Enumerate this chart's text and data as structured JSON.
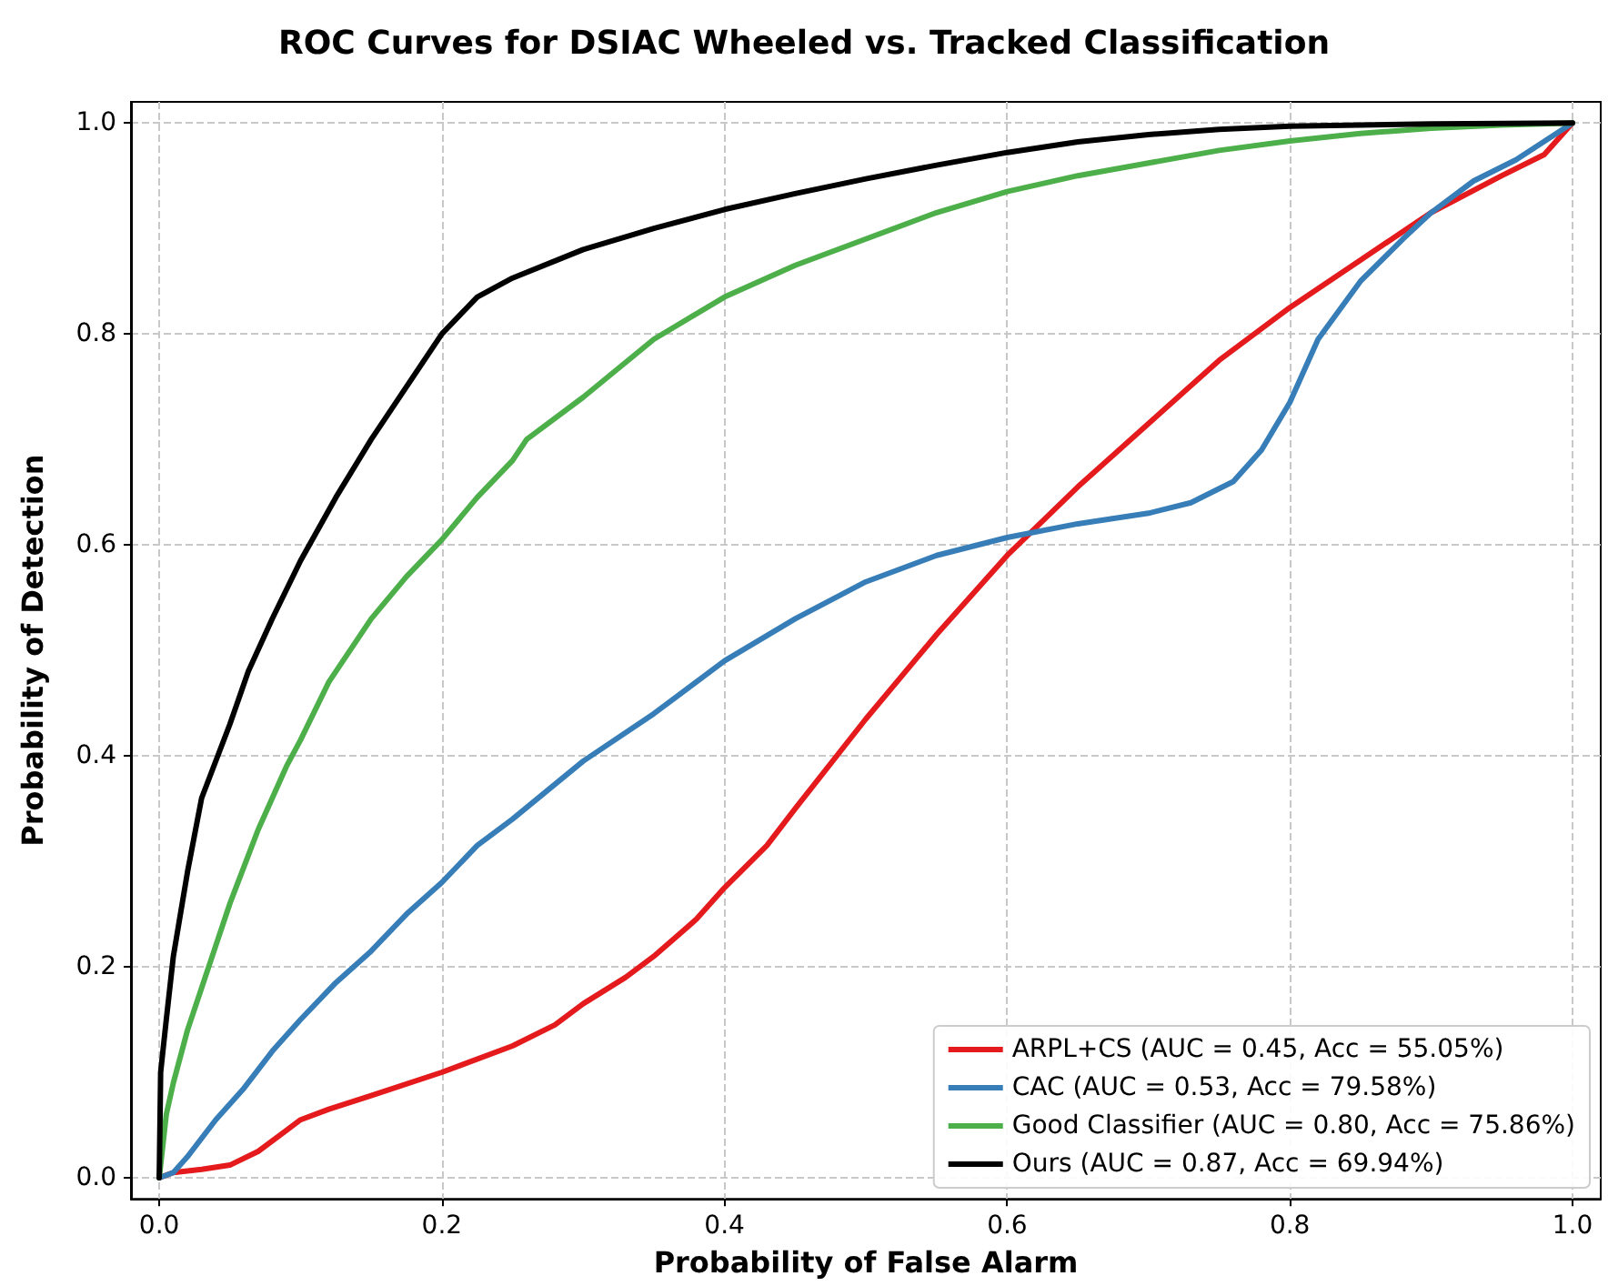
{
  "chart_data": {
    "type": "line",
    "title": "ROC Curves for DSIAC Wheeled vs. Tracked Classification",
    "xlabel": "Probability of False Alarm",
    "ylabel": "Probability of Detection",
    "xlim": [
      -0.02,
      1.02
    ],
    "ylim": [
      -0.02,
      1.02
    ],
    "xticks": [
      {
        "value": 0,
        "label": "0.0"
      },
      0.2,
      0.4,
      0.6,
      0.8,
      {
        "value": 1,
        "label": "1.0"
      }
    ],
    "yticks": [
      {
        "value": 0,
        "label": "0.0"
      },
      0.2,
      0.4,
      0.6,
      0.8,
      {
        "value": 1,
        "label": "1.0"
      }
    ],
    "grid": true,
    "legend": "bottom right",
    "marker": "none",
    "line_style": "solid",
    "series": [
      {
        "name": "ARPL+CS (AUC = 0.45, Acc = 55.05%)",
        "color": "#e41a1c",
        "x": [
          0,
          0.01,
          0.03,
          0.05,
          0.07,
          0.09,
          0.1,
          0.12,
          0.15,
          0.2,
          0.25,
          0.28,
          0.3,
          0.33,
          0.35,
          0.38,
          0.4,
          0.43,
          0.45,
          0.5,
          0.55,
          0.6,
          0.65,
          0.7,
          0.75,
          0.8,
          0.85,
          0.9,
          0.95,
          0.98,
          1
        ],
        "values": [
          0,
          0.005,
          0.008,
          0.012,
          0.025,
          0.045,
          0.055,
          0.065,
          0.078,
          0.1,
          0.125,
          0.145,
          0.165,
          0.19,
          0.21,
          0.245,
          0.275,
          0.315,
          0.35,
          0.435,
          0.515,
          0.59,
          0.655,
          0.715,
          0.775,
          0.825,
          0.87,
          0.915,
          0.95,
          0.97,
          1
        ]
      },
      {
        "name": "CAC (AUC = 0.53, Acc = 79.58%)",
        "color": "#377eb8",
        "x": [
          0,
          0.01,
          0.02,
          0.04,
          0.06,
          0.08,
          0.1,
          0.125,
          0.15,
          0.175,
          0.2,
          0.225,
          0.25,
          0.3,
          0.35,
          0.4,
          0.45,
          0.5,
          0.55,
          0.6,
          0.65,
          0.7,
          0.73,
          0.76,
          0.78,
          0.8,
          0.82,
          0.85,
          0.88,
          0.9,
          0.93,
          0.96,
          1
        ],
        "values": [
          0,
          0.005,
          0.02,
          0.055,
          0.085,
          0.12,
          0.15,
          0.185,
          0.215,
          0.25,
          0.28,
          0.315,
          0.34,
          0.395,
          0.44,
          0.49,
          0.53,
          0.565,
          0.59,
          0.607,
          0.62,
          0.63,
          0.64,
          0.66,
          0.69,
          0.735,
          0.795,
          0.85,
          0.89,
          0.915,
          0.945,
          0.965,
          1
        ]
      },
      {
        "name": "Good Classifier (AUC = 0.80, Acc = 75.86%)",
        "color": "#4daf4a",
        "x": [
          0,
          0.005,
          0.01,
          0.02,
          0.03,
          0.04,
          0.05,
          0.06,
          0.07,
          0.08,
          0.09,
          0.1,
          0.12,
          0.15,
          0.175,
          0.2,
          0.225,
          0.25,
          0.26,
          0.3,
          0.35,
          0.4,
          0.45,
          0.5,
          0.55,
          0.6,
          0.65,
          0.7,
          0.75,
          0.8,
          0.85,
          0.9,
          0.95,
          1
        ],
        "values": [
          0,
          0.06,
          0.09,
          0.14,
          0.18,
          0.22,
          0.26,
          0.295,
          0.33,
          0.36,
          0.39,
          0.415,
          0.47,
          0.53,
          0.57,
          0.605,
          0.645,
          0.68,
          0.7,
          0.74,
          0.795,
          0.835,
          0.865,
          0.89,
          0.915,
          0.935,
          0.95,
          0.962,
          0.974,
          0.983,
          0.99,
          0.995,
          0.998,
          1
        ]
      },
      {
        "name": "Ours (AUC = 0.87, Acc = 69.94%)",
        "color": "#000000",
        "x": [
          0,
          0.001,
          0.005,
          0.01,
          0.02,
          0.03,
          0.05,
          0.063,
          0.08,
          0.1,
          0.125,
          0.15,
          0.175,
          0.2,
          0.225,
          0.25,
          0.3,
          0.35,
          0.4,
          0.45,
          0.5,
          0.55,
          0.6,
          0.65,
          0.7,
          0.75,
          0.8,
          0.9,
          1
        ],
        "values": [
          0,
          0.1,
          0.15,
          0.21,
          0.29,
          0.36,
          0.43,
          0.48,
          0.53,
          0.585,
          0.645,
          0.7,
          0.75,
          0.8,
          0.835,
          0.853,
          0.88,
          0.9,
          0.918,
          0.933,
          0.947,
          0.96,
          0.972,
          0.982,
          0.989,
          0.994,
          0.997,
          0.999,
          1
        ]
      }
    ]
  }
}
